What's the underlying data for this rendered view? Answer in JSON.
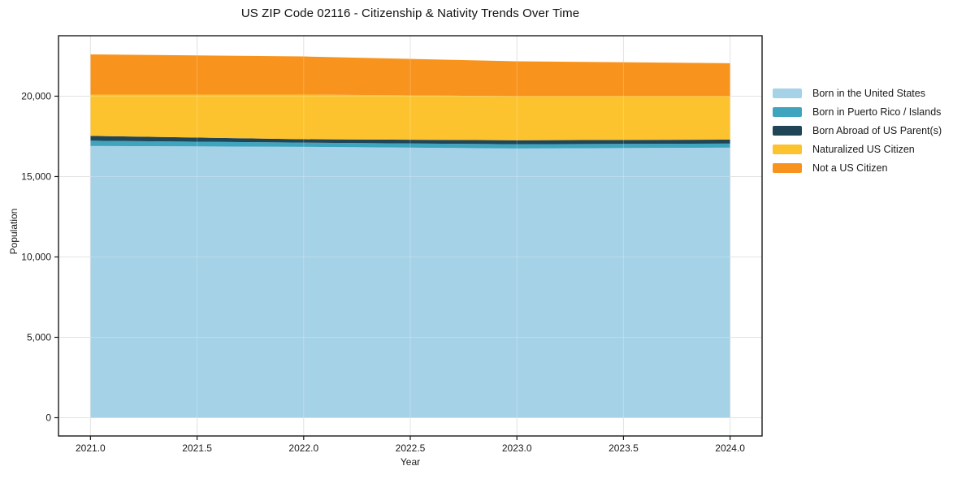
{
  "chart_data": {
    "type": "area",
    "stacked": true,
    "title": "US ZIP Code 02116 - Citizenship & Nativity Trends Over Time",
    "xlabel": "Year",
    "ylabel": "Population",
    "x": [
      2021,
      2022,
      2023,
      2024
    ],
    "series": [
      {
        "name": "Born in the United States",
        "color": "#a6d2e7",
        "values": [
          16900,
          16850,
          16750,
          16800
        ]
      },
      {
        "name": "Born in Puerto Rico / Islands",
        "color": "#3fa5bf",
        "values": [
          330,
          260,
          260,
          250
        ]
      },
      {
        "name": "Born Abroad of US Parent(s)",
        "color": "#1f4557",
        "values": [
          300,
          210,
          250,
          250
        ]
      },
      {
        "name": "Naturalized US Citizen",
        "color": "#fdc32f",
        "values": [
          2570,
          2780,
          2740,
          2700
        ]
      },
      {
        "name": "Not a US Citizen",
        "color": "#f8941d",
        "values": [
          2500,
          2370,
          2170,
          2050
        ]
      }
    ],
    "stacked_totals": [
      22600,
      22470,
      22170,
      22050
    ],
    "x_ticks": [
      2021.0,
      2021.5,
      2022.0,
      2022.5,
      2023.0,
      2023.5,
      2024.0
    ],
    "x_tick_labels": [
      "2021.0",
      "2021.5",
      "2022.0",
      "2022.5",
      "2023.0",
      "2023.5",
      "2024.0"
    ],
    "y_ticks": [
      0,
      5000,
      10000,
      15000,
      20000
    ],
    "y_tick_labels": [
      "0",
      "5,000",
      "10,000",
      "15,000",
      "20,000"
    ],
    "xlim": [
      2020.85,
      2024.15
    ],
    "ylim": [
      -1136,
      23760
    ],
    "grid": true,
    "legend_position": "right",
    "frame_color": "#1a1a1a",
    "grid_color": "#dcdcdc",
    "text_color": "#1a1a1a",
    "background_color": "#ffffff"
  }
}
